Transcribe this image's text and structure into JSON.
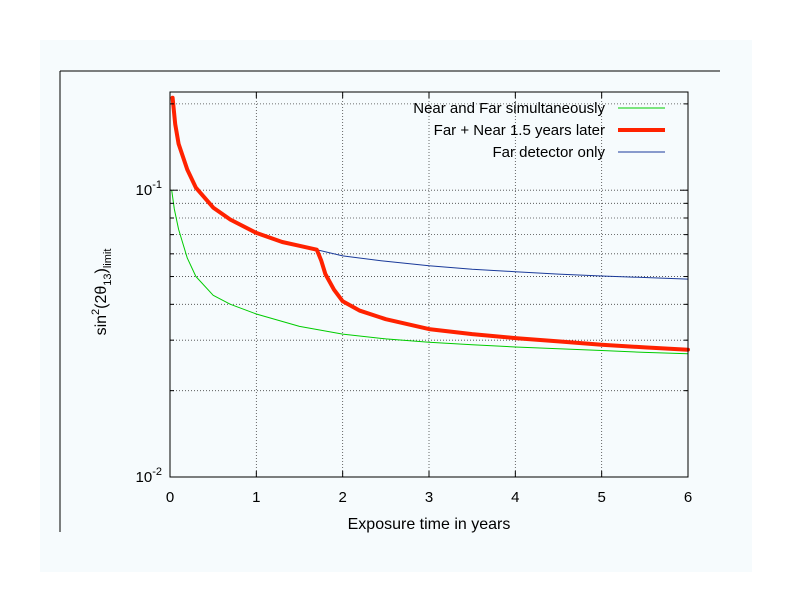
{
  "chart_data": {
    "type": "line",
    "title": "",
    "xlabel": "Exposure time in years",
    "ylabel": {
      "prefix": "sin",
      "sup": "2",
      "mid": "(2θ",
      "sub1": "13",
      "close": ")",
      "sub2": "limit"
    },
    "xlim": [
      0,
      6
    ],
    "ylim": [
      0.01,
      0.22
    ],
    "yscale": "log",
    "x_ticks": [
      0,
      1,
      2,
      3,
      4,
      5,
      6
    ],
    "x_tick_labels": [
      "0",
      "1",
      "2",
      "3",
      "4",
      "5",
      "6"
    ],
    "y_ticks": [
      {
        "value": 0.1,
        "base": "10",
        "exp": "-1"
      },
      {
        "value": 0.01,
        "base": "10",
        "exp": "-2"
      }
    ],
    "legend_position": "top-right",
    "series": [
      {
        "name": "Near and Far simultaneously",
        "color": "#00cc00",
        "style": "thin",
        "x": [
          0.02,
          0.05,
          0.1,
          0.2,
          0.3,
          0.5,
          0.7,
          1.0,
          1.5,
          2.0,
          2.5,
          3.0,
          3.5,
          4.0,
          4.5,
          5.0,
          5.5,
          6.0
        ],
        "values": [
          0.1,
          0.086,
          0.073,
          0.058,
          0.05,
          0.043,
          0.04,
          0.037,
          0.0335,
          0.0315,
          0.0303,
          0.0295,
          0.0289,
          0.0284,
          0.028,
          0.0276,
          0.0272,
          0.0269
        ]
      },
      {
        "name": "Far + Near 1.5 years later",
        "color": "#ff2200",
        "style": "thick",
        "x": [
          0.03,
          0.06,
          0.1,
          0.2,
          0.3,
          0.5,
          0.7,
          1.0,
          1.3,
          1.5,
          1.7,
          1.75,
          1.8,
          1.9,
          2.0,
          2.2,
          2.5,
          3.0,
          3.5,
          4.0,
          4.5,
          5.0,
          5.5,
          6.0
        ],
        "values": [
          0.21,
          0.17,
          0.145,
          0.118,
          0.102,
          0.087,
          0.079,
          0.071,
          0.066,
          0.064,
          0.062,
          0.057,
          0.051,
          0.045,
          0.041,
          0.038,
          0.0355,
          0.0328,
          0.0315,
          0.0305,
          0.0297,
          0.0289,
          0.0283,
          0.0278
        ]
      },
      {
        "name": "Far detector only",
        "color": "#1a3a9a",
        "style": "thin",
        "x": [
          0.03,
          0.06,
          0.1,
          0.2,
          0.3,
          0.5,
          0.7,
          1.0,
          1.3,
          1.5,
          1.7,
          2.0,
          2.5,
          3.0,
          3.5,
          4.0,
          4.5,
          5.0,
          5.5,
          6.0
        ],
        "values": [
          0.21,
          0.17,
          0.145,
          0.118,
          0.102,
          0.087,
          0.079,
          0.071,
          0.066,
          0.064,
          0.062,
          0.059,
          0.0565,
          0.0545,
          0.053,
          0.052,
          0.051,
          0.0502,
          0.0496,
          0.049
        ]
      }
    ]
  }
}
